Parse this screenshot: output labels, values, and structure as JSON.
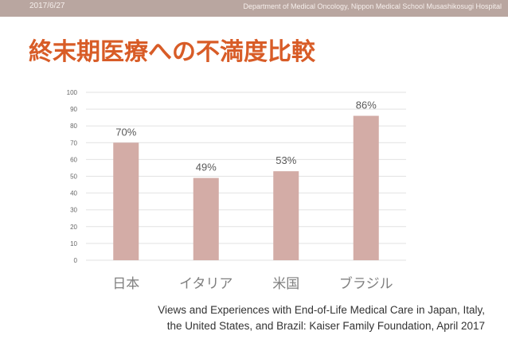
{
  "header": {
    "date": "2017/6/27",
    "department": "Department of Medical Oncology, Nippon Medical School Musashikosugi Hospital"
  },
  "slide": {
    "title": "終末期医療への不満度比較",
    "source_text": "Views and Experiences with End-of-Life Medical Care in Japan, Italy, the United States, and Brazil: Kaiser Family Foundation, April 2017"
  },
  "colors": {
    "bar": "#d3aca6",
    "title": "#d85c27",
    "header_band": "#b9a6a0",
    "grid": "#e2e2e2"
  },
  "chart_data": {
    "type": "bar",
    "title": "",
    "xlabel": "",
    "ylabel": "",
    "categories": [
      "日本",
      "イタリア",
      "米国",
      "ブラジル"
    ],
    "values": [
      70,
      49,
      53,
      86
    ],
    "data_labels": [
      "70%",
      "49%",
      "53%",
      "86%"
    ],
    "ylim": [
      0,
      100
    ],
    "yticks": [
      0,
      10,
      20,
      30,
      40,
      50,
      60,
      70,
      80,
      90,
      100
    ],
    "grid": true,
    "legend": "none"
  }
}
